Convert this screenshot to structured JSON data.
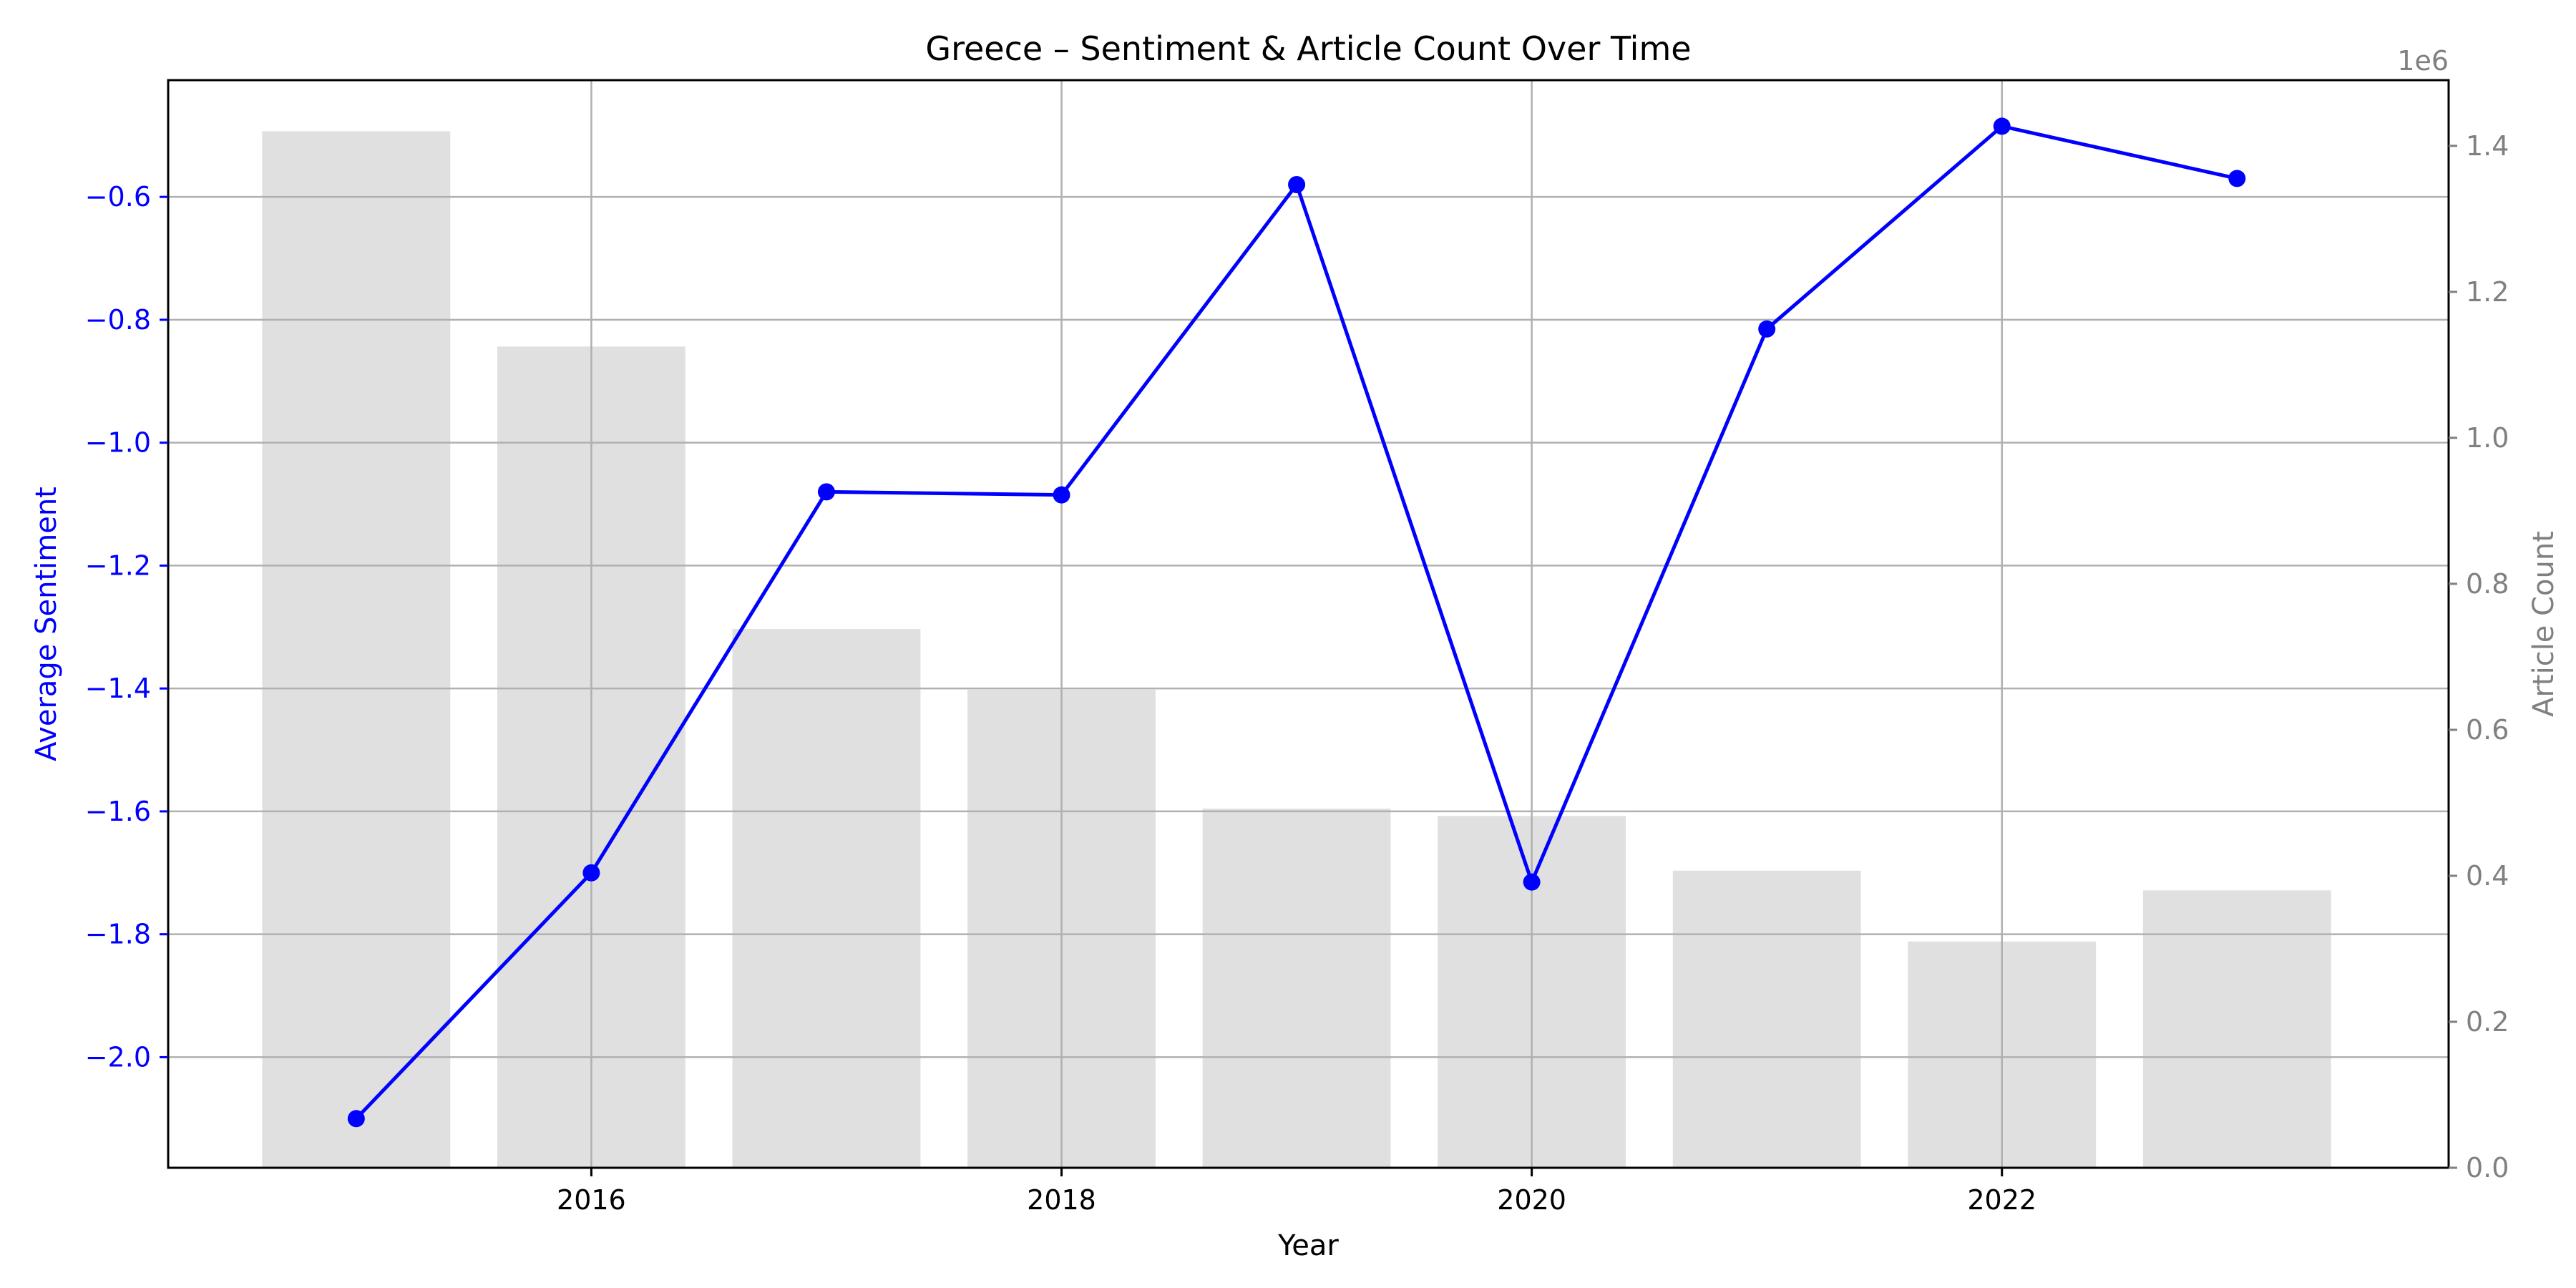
{
  "chart_data": {
    "type": "bar+line",
    "title": "Greece – Sentiment & Article Count Over Time",
    "xlabel": "Year",
    "ylabel_left": "Average Sentiment",
    "ylabel_right": "Article Count",
    "right_axis_offset_label": "1e6",
    "x": [
      2015,
      2016,
      2017,
      2018,
      2019,
      2020,
      2021,
      2022,
      2023
    ],
    "xlim": [
      2014.2,
      2023.9
    ],
    "x_ticks": [
      2016,
      2018,
      2020,
      2022
    ],
    "x_tick_labels": [
      "2016",
      "2018",
      "2020",
      "2022"
    ],
    "sentiment": {
      "name": "Average Sentiment",
      "values": [
        -2.1,
        -1.7,
        -1.08,
        -1.085,
        -0.58,
        -1.715,
        -0.815,
        -0.485,
        -0.57
      ],
      "ylim": [
        -2.18,
        -0.41
      ],
      "ticks": [
        -2.0,
        -1.8,
        -1.6,
        -1.4,
        -1.2,
        -1.0,
        -0.8,
        -0.6
      ],
      "tick_labels": [
        "−2.0",
        "−1.8",
        "−1.6",
        "−1.4",
        "−1.2",
        "−1.0",
        "−0.8",
        "−0.6"
      ],
      "color": "#0000ff"
    },
    "article_count": {
      "name": "Article Count",
      "values": [
        1420000,
        1125000,
        738000,
        655000,
        492000,
        482000,
        407000,
        310000,
        380000
      ],
      "ylim": [
        0,
        1490000
      ],
      "ticks": [
        0,
        200000,
        400000,
        600000,
        800000,
        1000000,
        1200000,
        1400000
      ],
      "tick_labels": [
        "0.0",
        "0.2",
        "0.4",
        "0.6",
        "0.8",
        "1.0",
        "1.2",
        "1.4"
      ],
      "bar_width_years": 0.8,
      "color": "#e0e0e0"
    },
    "grid": true,
    "axis_text_colors": {
      "left": "#0000ff",
      "right": "#808080",
      "bottom": "#000000"
    }
  }
}
